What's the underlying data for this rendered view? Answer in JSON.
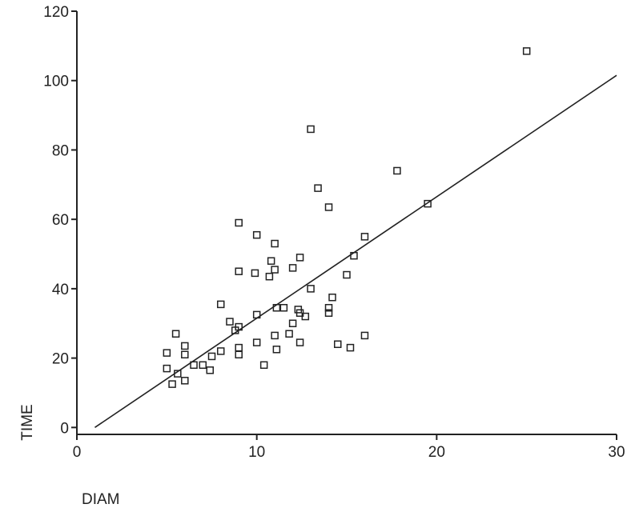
{
  "chart_data": {
    "type": "scatter",
    "title": "",
    "xlabel": "DIAM",
    "ylabel": "TIME",
    "xlim": [
      0,
      30
    ],
    "ylim": [
      -2,
      120
    ],
    "xticks": [
      0,
      10,
      20,
      30
    ],
    "yticks": [
      0,
      20,
      40,
      60,
      80,
      100,
      120
    ],
    "grid": false,
    "marker": "open-square",
    "fit_line": {
      "type": "linear",
      "slope": 3.5,
      "intercept": -3.5,
      "x_range": [
        1,
        30
      ]
    },
    "points": [
      {
        "x": 5.0,
        "y": 21.5
      },
      {
        "x": 5.0,
        "y": 17.0
      },
      {
        "x": 5.5,
        "y": 27.0
      },
      {
        "x": 5.6,
        "y": 15.5
      },
      {
        "x": 5.3,
        "y": 12.5
      },
      {
        "x": 6.0,
        "y": 23.5
      },
      {
        "x": 6.0,
        "y": 21.0
      },
      {
        "x": 6.0,
        "y": 13.5
      },
      {
        "x": 6.5,
        "y": 18.0
      },
      {
        "x": 7.0,
        "y": 18.0
      },
      {
        "x": 7.4,
        "y": 16.5
      },
      {
        "x": 7.5,
        "y": 20.5
      },
      {
        "x": 8.0,
        "y": 35.5
      },
      {
        "x": 8.0,
        "y": 22.0
      },
      {
        "x": 8.5,
        "y": 30.5
      },
      {
        "x": 8.8,
        "y": 28.0
      },
      {
        "x": 9.0,
        "y": 59.0
      },
      {
        "x": 9.0,
        "y": 45.0
      },
      {
        "x": 9.0,
        "y": 29.0
      },
      {
        "x": 9.0,
        "y": 23.0
      },
      {
        "x": 9.0,
        "y": 21.0
      },
      {
        "x": 10.0,
        "y": 55.5
      },
      {
        "x": 9.9,
        "y": 44.5
      },
      {
        "x": 10.0,
        "y": 32.5
      },
      {
        "x": 10.0,
        "y": 24.5
      },
      {
        "x": 10.4,
        "y": 18.0
      },
      {
        "x": 10.7,
        "y": 43.5
      },
      {
        "x": 10.8,
        "y": 48.0
      },
      {
        "x": 11.0,
        "y": 53.0
      },
      {
        "x": 11.0,
        "y": 45.5
      },
      {
        "x": 11.1,
        "y": 34.5
      },
      {
        "x": 11.0,
        "y": 26.5
      },
      {
        "x": 11.1,
        "y": 22.5
      },
      {
        "x": 11.5,
        "y": 34.5
      },
      {
        "x": 11.8,
        "y": 27.0
      },
      {
        "x": 12.0,
        "y": 46.0
      },
      {
        "x": 12.0,
        "y": 30.0
      },
      {
        "x": 12.3,
        "y": 34.0
      },
      {
        "x": 12.4,
        "y": 33.0
      },
      {
        "x": 12.4,
        "y": 49.0
      },
      {
        "x": 12.4,
        "y": 24.5
      },
      {
        "x": 12.7,
        "y": 32.0
      },
      {
        "x": 13.0,
        "y": 86.0
      },
      {
        "x": 13.0,
        "y": 40.0
      },
      {
        "x": 13.4,
        "y": 69.0
      },
      {
        "x": 14.0,
        "y": 63.5
      },
      {
        "x": 14.0,
        "y": 34.5
      },
      {
        "x": 14.0,
        "y": 33.0
      },
      {
        "x": 14.2,
        "y": 37.5
      },
      {
        "x": 14.5,
        "y": 24.0
      },
      {
        "x": 15.0,
        "y": 44.0
      },
      {
        "x": 15.2,
        "y": 23.0
      },
      {
        "x": 15.4,
        "y": 49.5
      },
      {
        "x": 16.0,
        "y": 55.0
      },
      {
        "x": 16.0,
        "y": 26.5
      },
      {
        "x": 17.8,
        "y": 74.0
      },
      {
        "x": 19.5,
        "y": 64.5
      },
      {
        "x": 25.0,
        "y": 108.5
      }
    ]
  }
}
